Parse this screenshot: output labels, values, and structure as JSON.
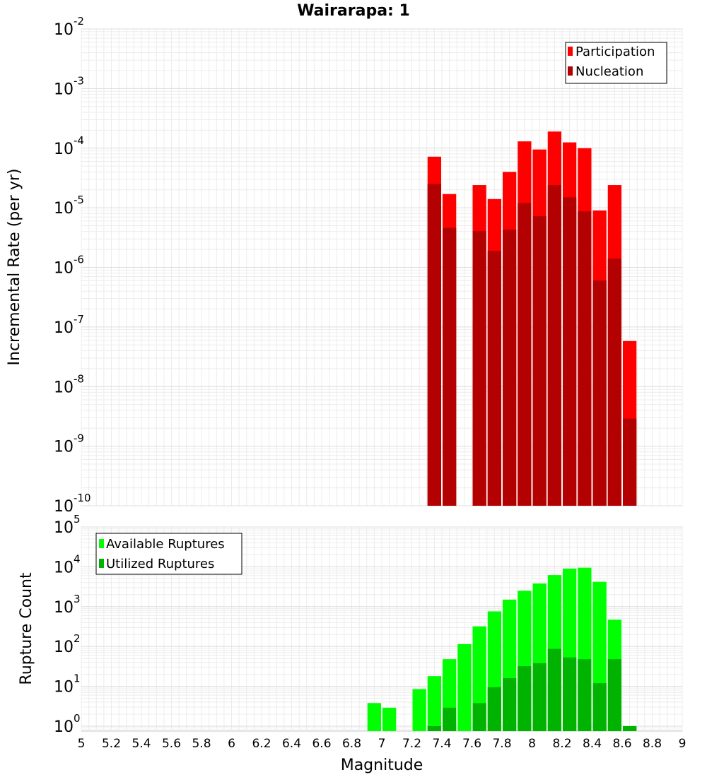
{
  "chart_data": [
    {
      "type": "bar",
      "title": "Wairarapa: 1",
      "ylabel": "Incremental Rate (per yr)",
      "xlabel": "",
      "yscale": "log",
      "ylim": [
        1e-10,
        0.01
      ],
      "xlim": [
        5,
        9
      ],
      "bar_width": 0.1,
      "grid": true,
      "legend_position": "top-right",
      "y_ticks": [
        {
          "base": "10",
          "exp": "-2",
          "value": 0.01
        },
        {
          "base": "10",
          "exp": "-3",
          "value": 0.001
        },
        {
          "base": "10",
          "exp": "-4",
          "value": 0.0001
        },
        {
          "base": "10",
          "exp": "-5",
          "value": 1e-05
        },
        {
          "base": "10",
          "exp": "-6",
          "value": 1e-06
        },
        {
          "base": "10",
          "exp": "-7",
          "value": 1e-07
        },
        {
          "base": "10",
          "exp": "-8",
          "value": 1e-08
        },
        {
          "base": "10",
          "exp": "-9",
          "value": 1e-09
        },
        {
          "base": "10",
          "exp": "-10",
          "value": 1e-10
        }
      ],
      "x": [
        7.35,
        7.45,
        7.65,
        7.75,
        7.85,
        7.95,
        8.05,
        8.15,
        8.25,
        8.35,
        8.45,
        8.55,
        8.65
      ],
      "series": [
        {
          "name": "Participation",
          "color": "#ff0000",
          "values": [
            7.2e-05,
            1.7e-05,
            2.4e-05,
            1.4e-05,
            4e-05,
            0.00013,
            9.5e-05,
            0.00019,
            0.000125,
            0.0001,
            9e-06,
            2.4e-05,
            5.8e-08
          ]
        },
        {
          "name": "Nucleation",
          "color": "#b30000",
          "values": [
            2.5e-05,
            4.6e-06,
            4.1e-06,
            1.9e-06,
            4.3e-06,
            1.2e-05,
            7.2e-06,
            2.4e-05,
            1.5e-05,
            8.7e-06,
            6e-07,
            1.4e-06,
            2.9e-09
          ]
        }
      ]
    },
    {
      "type": "bar",
      "title": "",
      "ylabel": "Rupture Count",
      "xlabel": "Magnitude",
      "yscale": "log",
      "ylim": [
        0.75,
        100000
      ],
      "xlim": [
        5,
        9
      ],
      "bar_width": 0.1,
      "grid": true,
      "legend_position": "top-left",
      "y_ticks": [
        {
          "base": "10",
          "exp": "5",
          "value": 100000
        },
        {
          "base": "10",
          "exp": "4",
          "value": 10000
        },
        {
          "base": "10",
          "exp": "3",
          "value": 1000
        },
        {
          "base": "10",
          "exp": "2",
          "value": 100
        },
        {
          "base": "10",
          "exp": "1",
          "value": 10
        },
        {
          "base": "10",
          "exp": "0",
          "value": 1
        }
      ],
      "x_tick_labels": [
        "5",
        "5.2",
        "5.4",
        "5.6",
        "5.8",
        "6",
        "6.2",
        "6.4",
        "6.6",
        "6.8",
        "7",
        "7.2",
        "7.4",
        "7.6",
        "7.8",
        "8",
        "8.2",
        "8.4",
        "8.6",
        "8.8",
        "9"
      ],
      "x": [
        6.95,
        7.05,
        7.25,
        7.35,
        7.45,
        7.55,
        7.65,
        7.75,
        7.85,
        7.95,
        8.05,
        8.15,
        8.25,
        8.35,
        8.45,
        8.55,
        8.65
      ],
      "series": [
        {
          "name": "Available Ruptures",
          "color": "#00ff00",
          "values": [
            3.8,
            2.9,
            8.5,
            18,
            48,
            115,
            320,
            760,
            1500,
            2500,
            3800,
            6200,
            9000,
            9500,
            4200,
            470,
            1
          ]
        },
        {
          "name": "Utilized Ruptures",
          "color": "#00b300",
          "values": [
            0,
            0,
            0,
            1,
            2.9,
            0,
            3.8,
            9.5,
            16,
            32,
            38,
            87,
            53,
            48,
            12,
            48,
            1
          ]
        }
      ]
    }
  ]
}
